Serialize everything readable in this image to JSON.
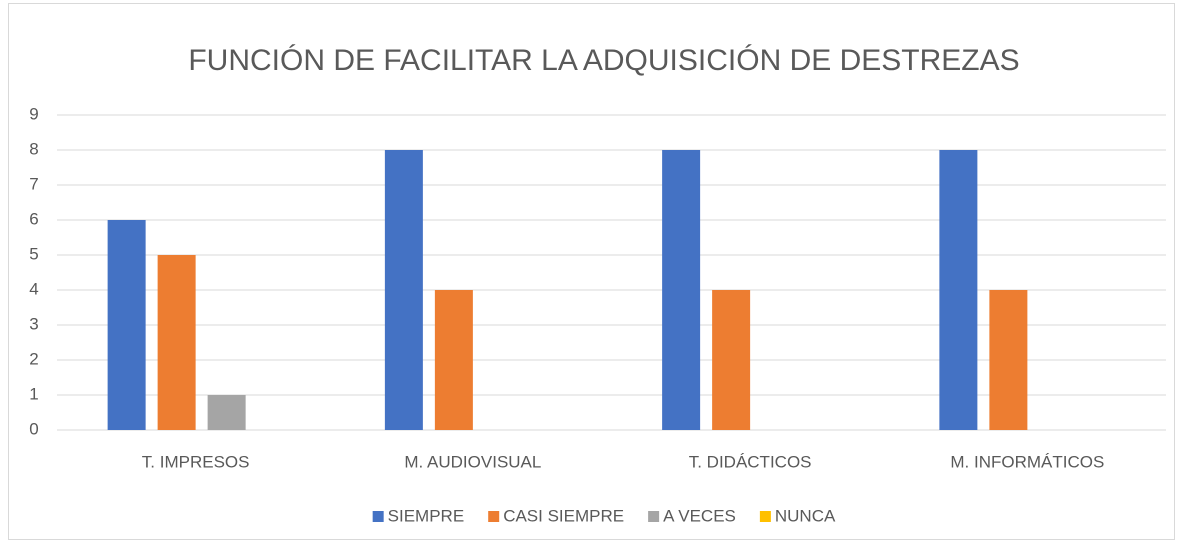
{
  "chart_data": {
    "type": "bar",
    "title": "FUNCIÓN DE FACILITAR LA ADQUISICIÓN DE DESTREZAS",
    "categories": [
      "T. IMPRESOS",
      "M. AUDIOVISUAL",
      "T. DIDÁCTICOS",
      "M. INFORMÁTICOS"
    ],
    "series": [
      {
        "name": "SIEMPRE",
        "color": "#4472c4",
        "values": [
          6,
          8,
          8,
          8
        ]
      },
      {
        "name": "CASI SIEMPRE",
        "color": "#ed7d31",
        "values": [
          5,
          4,
          4,
          4
        ]
      },
      {
        "name": "A VECES",
        "color": "#a5a5a5",
        "values": [
          1,
          0,
          0,
          0
        ]
      },
      {
        "name": "NUNCA",
        "color": "#ffc000",
        "values": [
          0,
          0,
          0,
          0
        ]
      }
    ],
    "ylim": [
      0,
      9
    ],
    "yticks": [
      0,
      1,
      2,
      3,
      4,
      5,
      6,
      7,
      8,
      9
    ],
    "grid": true,
    "legend": "bottom"
  }
}
